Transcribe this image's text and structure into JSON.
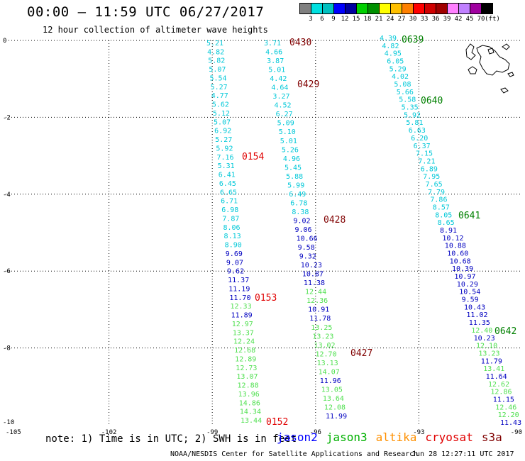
{
  "title": "00:00 – 11:59 UTC 06/27/2017",
  "subtitle": "12 hour collection of altimeter wave heights",
  "legend": {
    "labels": [
      "3",
      "6",
      "9",
      "12",
      "15",
      "18",
      "21",
      "24",
      "27",
      "30",
      "33",
      "36",
      "39",
      "42",
      "45",
      "70",
      "(ft)"
    ],
    "colors": [
      "#808080",
      "#00e0e0",
      "#00c0c0",
      "#0000ff",
      "#0000a0",
      "#00d000",
      "#009000",
      "#ffff00",
      "#ffc000",
      "#ff8000",
      "#ff0000",
      "#d00000",
      "#a00000",
      "#ff80ff",
      "#c080ff",
      "#a000a0",
      "#000000"
    ]
  },
  "axes": {
    "y_labels": [
      "0",
      "-2",
      "-4",
      "-6",
      "-8",
      "-10"
    ],
    "x_labels": [
      "-105",
      "-102",
      "-99",
      "-96",
      "-93",
      "-90"
    ]
  },
  "tracks": [
    {
      "heights": [
        "5.21",
        "4.82",
        "5.82",
        "5.07",
        "5.54",
        "5.27",
        "4.77",
        "5.62",
        "5.12",
        "5.07",
        "6.92",
        "5.27",
        "5.92",
        "7.16",
        "5.31",
        "6.41",
        "6.45",
        "6.65",
        "6.71",
        "6.98",
        "7.87",
        "8.06",
        "8.13",
        "8.90",
        "9.69",
        "9.07",
        "9.62",
        "11.37",
        "11.19",
        "11.70",
        "12.33",
        "11.89",
        "12.97",
        "13.37",
        "12.24",
        "12.68",
        "12.89",
        "12.73",
        "13.07",
        "12.88",
        "13.96",
        "14.86",
        "14.34",
        "13.44"
      ],
      "colors": [
        "c",
        "c",
        "c",
        "c",
        "c",
        "c",
        "c",
        "c",
        "c",
        "c",
        "c",
        "c",
        "c",
        "c",
        "c",
        "c",
        "c",
        "c",
        "c",
        "c",
        "c",
        "c",
        "c",
        "c",
        "d",
        "d",
        "d",
        "d",
        "d",
        "d",
        "g",
        "d",
        "g",
        "g",
        "g",
        "g",
        "g",
        "g",
        "g",
        "g",
        "g",
        "g",
        "g",
        "g"
      ]
    },
    {
      "heights": [
        "3.71",
        "4.66",
        "3.87",
        "5.01",
        "4.42",
        "4.64",
        "3.27",
        "4.52",
        "6.27",
        "5.09",
        "5.10",
        "5.01",
        "5.26",
        "4.96",
        "5.45",
        "5.88",
        "5.99",
        "6.49",
        "6.78",
        "8.38",
        "9.02",
        "9.06",
        "10.66",
        "9.58",
        "9.32",
        "10.23",
        "10.87",
        "11.38",
        "12.44",
        "12.36",
        "10.91",
        "11.78",
        "13.25",
        "13.23",
        "13.02",
        "12.70",
        "13.13",
        "14.07",
        "11.96",
        "13.05",
        "13.64",
        "12.08",
        "11.99"
      ],
      "colors": [
        "c",
        "c",
        "c",
        "c",
        "c",
        "c",
        "c",
        "c",
        "c",
        "c",
        "c",
        "c",
        "c",
        "c",
        "c",
        "c",
        "c",
        "c",
        "c",
        "c",
        "d",
        "d",
        "d",
        "d",
        "d",
        "d",
        "d",
        "d",
        "g",
        "g",
        "d",
        "d",
        "g",
        "g",
        "g",
        "g",
        "g",
        "g",
        "d",
        "g",
        "g",
        "g",
        "d"
      ]
    },
    {
      "heights": [
        "4.39",
        "4.82",
        "4.95",
        "6.05",
        "5.29",
        "4.02",
        "5.08",
        "5.66",
        "5.58",
        "5.35",
        "5.92",
        "5.81",
        "6.63",
        "6.20",
        "6.37",
        "7.15",
        "7.21",
        "6.89",
        "7.95",
        "7.65",
        "7.79",
        "7.86",
        "8.57",
        "8.05",
        "8.65",
        "8.91",
        "10.12",
        "10.88",
        "10.60",
        "10.68",
        "10.39",
        "10.97",
        "10.29",
        "10.54",
        "9.59",
        "10.43",
        "11.02",
        "11.35",
        "12.40",
        "10.23",
        "12.10",
        "13.23",
        "11.79",
        "13.41",
        "11.64",
        "12.62",
        "12.86",
        "11.15",
        "12.46",
        "12.20",
        "11.43"
      ],
      "colors": [
        "c",
        "c",
        "c",
        "c",
        "c",
        "c",
        "c",
        "c",
        "c",
        "c",
        "c",
        "c",
        "c",
        "c",
        "c",
        "c",
        "c",
        "c",
        "c",
        "c",
        "c",
        "c",
        "c",
        "c",
        "c",
        "d",
        "d",
        "d",
        "d",
        "d",
        "d",
        "d",
        "d",
        "d",
        "d",
        "d",
        "d",
        "d",
        "g",
        "d",
        "g",
        "g",
        "d",
        "g",
        "d",
        "g",
        "g",
        "d",
        "g",
        "g",
        "d"
      ]
    }
  ],
  "time_labels": [
    {
      "text": "0430",
      "color": "#800000"
    },
    {
      "text": "0429",
      "color": "#800000"
    },
    {
      "text": "0428",
      "color": "#800000"
    },
    {
      "text": "0427",
      "color": "#800000"
    },
    {
      "text": "0154",
      "color": "#e00000"
    },
    {
      "text": "0153",
      "color": "#e00000"
    },
    {
      "text": "0152",
      "color": "#e00000"
    },
    {
      "text": "0639",
      "color": "#008000"
    },
    {
      "text": "0640",
      "color": "#008000"
    },
    {
      "text": "0641",
      "color": "#008000"
    },
    {
      "text": "0642",
      "color": "#008000"
    }
  ],
  "note": "note: 1) Time is in UTC; 2) SWH is in feet",
  "satellites": [
    {
      "name": "jason2",
      "color": "#0000ff"
    },
    {
      "name": "jason3",
      "color": "#00b000"
    },
    {
      "name": "altika",
      "color": "#ff9000"
    },
    {
      "name": "cryosat",
      "color": "#e00000"
    },
    {
      "name": "s3a",
      "color": "#800000"
    }
  ],
  "footer": {
    "credit": "NOAA/NESDIS Center for Satellite Applications and Research",
    "timestamp": "Jun 28 12:27:11 UTC 2017"
  },
  "track_colors": {
    "c": "#00c8d8",
    "d": "#0000c0",
    "g": "#50e050"
  }
}
